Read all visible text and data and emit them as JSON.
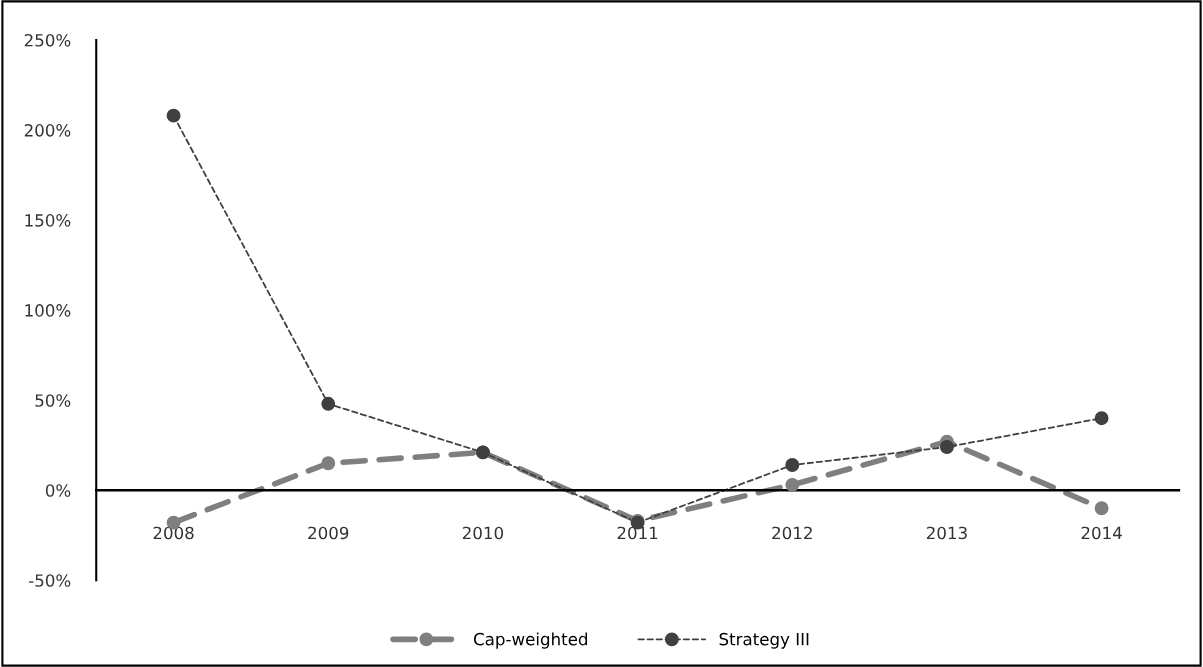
{
  "chart_data": {
    "type": "line",
    "categories": [
      "2008",
      "2009",
      "2010",
      "2011",
      "2012",
      "2013",
      "2014"
    ],
    "series": [
      {
        "name": "Cap-weighted",
        "color": "#7f7f7f",
        "values": [
          -18,
          15,
          21,
          -17,
          3,
          27,
          -10
        ],
        "line_style": "dashed"
      },
      {
        "name": "Strategy III",
        "color": "#404040",
        "values": [
          208,
          48,
          21,
          -18,
          14,
          24,
          40
        ],
        "line_style": "dotted"
      }
    ],
    "ylim": [
      -50,
      250
    ],
    "yticks": [
      {
        "value": -50,
        "label": "-50%"
      },
      {
        "value": 0,
        "label": "0%"
      },
      {
        "value": 50,
        "label": "50%"
      },
      {
        "value": 100,
        "label": "100%"
      },
      {
        "value": 150,
        "label": "150%"
      },
      {
        "value": 200,
        "label": "200%"
      },
      {
        "value": 250,
        "label": "250%"
      }
    ],
    "marker": "circle",
    "grid": false,
    "legend": "bottom"
  }
}
